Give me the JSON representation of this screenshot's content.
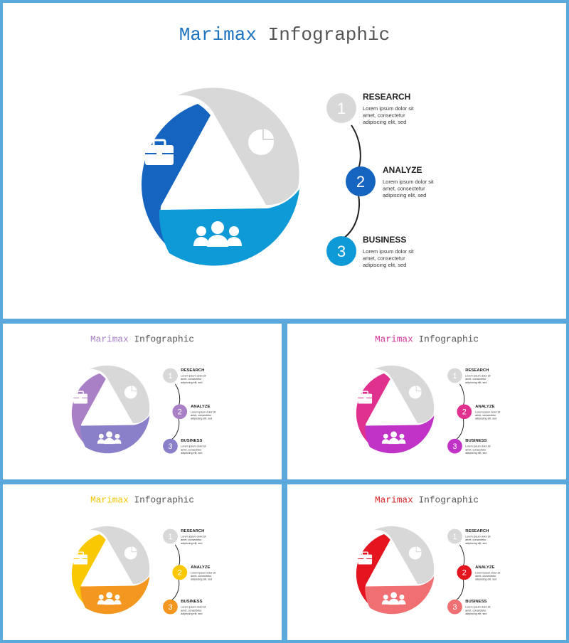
{
  "title_accent": "Marimax",
  "title_rest": " Infographic",
  "steps": [
    {
      "num": "1",
      "title": "RESEARCH",
      "desc": [
        "Lorem ipsum dolor sit",
        "amet, consectetur",
        "adipiscing elit, sed"
      ]
    },
    {
      "num": "2",
      "title": "ANALYZE",
      "desc": [
        "Lorem ipsum dolor sit",
        "amet, consectetur",
        "adipiscing elit, sed"
      ]
    },
    {
      "num": "3",
      "title": "BUSINESS",
      "desc": [
        "Lorem ipsum dolor sit",
        "amet, consectetur",
        "adipiscing elit, sed"
      ]
    }
  ],
  "icons": [
    "briefcase-icon",
    "pie-chart-icon",
    "people-icon"
  ],
  "variants": [
    {
      "name": "blue",
      "title_color": "#1e73be",
      "c1": "#1565c0",
      "c2": "#0e9ad6"
    },
    {
      "name": "purple",
      "title_color": "#a67cc4",
      "c1": "#a97fc6",
      "c2": "#8a80c9"
    },
    {
      "name": "magenta",
      "title_color": "#d2339a",
      "c1": "#e0318f",
      "c2": "#c133c6"
    },
    {
      "name": "yellow",
      "title_color": "#f2c500",
      "c1": "#fac800",
      "c2": "#f49720"
    },
    {
      "name": "red",
      "title_color": "#d92020",
      "c1": "#e51520",
      "c2": "#f06f72"
    }
  ],
  "grey": "#d8d8d8"
}
